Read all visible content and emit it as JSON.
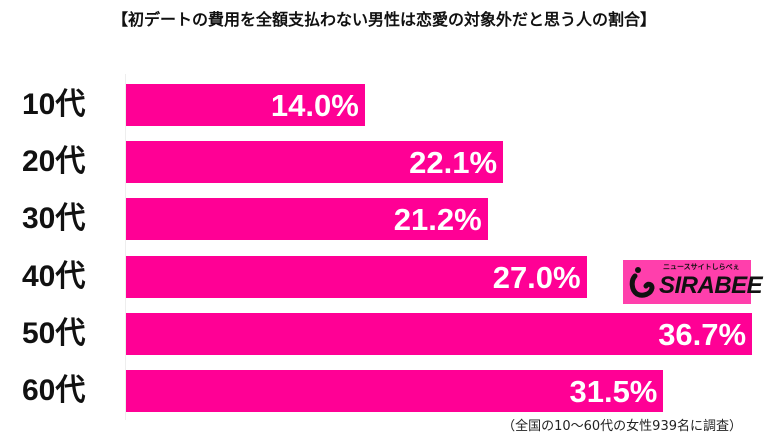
{
  "title": "【初デートの費用を全額支払わない男性は恋愛の対象外だと思う人の割合】",
  "footnote": "（全国の10〜60代の女性939名に調査）",
  "logo": {
    "main": "SIRABEE",
    "sub": "ニュースサイトしらべぇ",
    "icon": "sirabee-i-icon"
  },
  "colors": {
    "bar": "#ff0095",
    "logo_bg": "#ff3fac",
    "text": "#111111",
    "value_text": "#ffffff"
  },
  "bars": [
    {
      "label": "10代",
      "value_label": "14.0%"
    },
    {
      "label": "20代",
      "value_label": "22.1%"
    },
    {
      "label": "30代",
      "value_label": "21.2%"
    },
    {
      "label": "40代",
      "value_label": "27.0%"
    },
    {
      "label": "50代",
      "value_label": "36.7%"
    },
    {
      "label": "60代",
      "value_label": "31.5%"
    }
  ],
  "chart_data": {
    "type": "bar",
    "orientation": "horizontal",
    "title": "【初デートの費用を全額支払わない男性は恋愛の対象外だと思う人の割合】",
    "categories": [
      "10代",
      "20代",
      "30代",
      "40代",
      "50代",
      "60代"
    ],
    "values": [
      14.0,
      22.1,
      21.2,
      27.0,
      36.7,
      31.5
    ],
    "unit": "%",
    "xlabel": "",
    "ylabel": "",
    "grid": false,
    "legend": null,
    "annotations": [
      "（全国の10〜60代の女性939名に調査）",
      "SIRABEE ニュースサイトしらべぇ"
    ]
  }
}
